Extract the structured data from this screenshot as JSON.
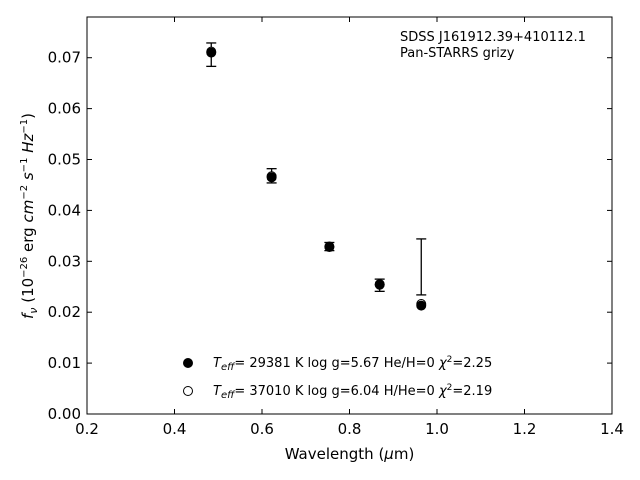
{
  "chart_data": {
    "type": "scatter",
    "title": "",
    "xlabel": "Wavelength (μm)",
    "ylabel": "fν (10⁻²⁶ erg cm⁻² s⁻¹ Hz⁻¹)",
    "xlim": [
      0.2,
      1.4
    ],
    "ylim": [
      0.0,
      0.078
    ],
    "xticks": [
      "0.2",
      "0.4",
      "0.6",
      "0.8",
      "1.0",
      "1.2",
      "1.4"
    ],
    "yticks": [
      "0.00",
      "0.01",
      "0.02",
      "0.03",
      "0.04",
      "0.05",
      "0.06",
      "0.07"
    ],
    "annotation": [
      "SDSS J161912.39+410112.1",
      "Pan-STARRS grizy"
    ],
    "observed": {
      "x": [
        0.484,
        0.622,
        0.754,
        0.869,
        0.964
      ],
      "y": [
        0.0706,
        0.0468,
        0.0329,
        0.0253,
        0.0289
      ],
      "yerr": [
        0.0023,
        0.0014,
        0.0008,
        0.0012,
        0.0055
      ]
    },
    "series": [
      {
        "name": "Teff= 29381 K  log g=5.67  He/H=0  χ²=2.25",
        "marker": "filled",
        "x": [
          0.484,
          0.622,
          0.754,
          0.869,
          0.964
        ],
        "y": [
          0.071,
          0.0465,
          0.0328,
          0.0254,
          0.0213
        ]
      },
      {
        "name": "Teff= 37010 K  log g=6.04  H/He=0  χ²=2.19",
        "marker": "open",
        "x": [
          0.484,
          0.622,
          0.754,
          0.869,
          0.964
        ],
        "y": [
          0.0712,
          0.0467,
          0.0329,
          0.0255,
          0.0216
        ]
      }
    ],
    "legend": [
      {
        "marker": "filled",
        "teff": "29381 K",
        "logg": "log g=5.67",
        "comp": "He/H=0",
        "chi2": "=2.25"
      },
      {
        "marker": "open",
        "teff": "37010 K",
        "logg": "log g=6.04",
        "comp": "H/He=0",
        "chi2": "=2.19"
      }
    ],
    "legend_position": "bottom-center",
    "grid": false
  }
}
